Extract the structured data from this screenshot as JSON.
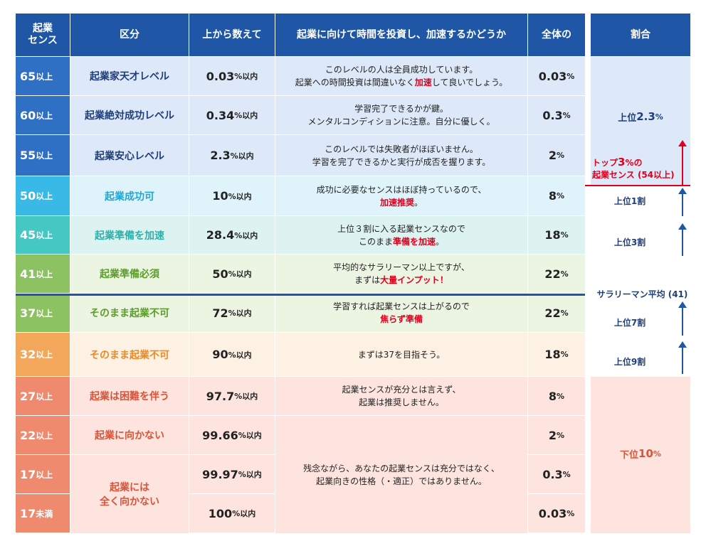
{
  "header": {
    "sense": "起業\nセンス",
    "category": "区分",
    "top_count": "上から数えて",
    "invest": "起業に向けて時間を投資し、加速するかどうか",
    "overall": "全体の",
    "ratio": "割合"
  },
  "rows": [
    {
      "score": "65",
      "suffix": "以上",
      "level": "起業家天才レベル",
      "top": "0.03",
      "top_unit": "%以内",
      "dist": "0.03",
      "unit": "%",
      "desc1": "このレベルの人は全員成功しています。",
      "desc2a": "起業への時間投資は間違いなく",
      "desc2b": "加速",
      "desc2c": "して良いでしょう。"
    },
    {
      "score": "60",
      "suffix": "以上",
      "level": "起業絶対成功レベル",
      "top": "0.34",
      "top_unit": "%以内",
      "dist": "0.3",
      "unit": "%",
      "desc1": "学習完了できるかが鍵。",
      "desc2": "メンタルコンディションに注意。自分に優しく。"
    },
    {
      "score": "55",
      "suffix": "以上",
      "level": "起業安心レベル",
      "top": "2.3",
      "top_unit": "%以内",
      "dist": "2",
      "unit": "%",
      "desc1": "このレベルでは失敗者がほぼいません。",
      "desc2": "学習を完了できるかと実行が成否を握ります。"
    },
    {
      "score": "50",
      "suffix": "以上",
      "level": "起業成功可",
      "top": "10",
      "top_unit": "%以内",
      "dist": "8",
      "unit": "%",
      "desc1": "成功に必要なセンスはほぼ持っているので、",
      "desc2_red": "加速推奨",
      "desc2_end": "。"
    },
    {
      "score": "45",
      "suffix": "以上",
      "level": "起業準備を加速",
      "top": "28.4",
      "top_unit": "%以内",
      "dist": "18",
      "unit": "%",
      "desc1": "上位３割に入る起業センスなので",
      "desc2a": "このまま",
      "desc2_red": "準備を加速",
      "desc2_end": "。"
    },
    {
      "score": "41",
      "suffix": "以上",
      "level": "起業準備必須",
      "top": "50",
      "top_unit": "%以内",
      "dist": "22",
      "unit": "%",
      "desc1": "平均的なサラリーマン以上ですが、",
      "desc2a": "まずは",
      "desc2_red": "大量インプット！"
    },
    {
      "score": "37",
      "suffix": "以上",
      "level": "そのまま起業不可",
      "top": "72",
      "top_unit": "%以内",
      "dist": "22",
      "unit": "%",
      "desc1": "学習すれば起業センスは上がるので",
      "desc2_red": "焦らず準備"
    },
    {
      "score": "32",
      "suffix": "以上",
      "level": "そのまま起業不可",
      "top": "90",
      "top_unit": "%以内",
      "dist": "18",
      "unit": "%",
      "desc1": "まずは37を目指そう。"
    },
    {
      "score": "27",
      "suffix": "以上",
      "level": "起業は困難を伴う",
      "top": "97.7",
      "top_unit": "%以内",
      "dist": "8",
      "unit": "%",
      "desc1": "起業センスが充分とは言えず、",
      "desc2": "起業は推奨しません。"
    },
    {
      "score": "22",
      "suffix": "以上",
      "level": "起業に向かない",
      "top": "99.66",
      "top_unit": "%以内",
      "dist": "2",
      "unit": "%"
    },
    {
      "score": "17",
      "suffix": "以上",
      "top": "99.97",
      "top_unit": "%以内",
      "dist": "0.3",
      "unit": "%"
    },
    {
      "score": "17",
      "suffix": "未満",
      "top": "100",
      "top_unit": "%以内",
      "dist": "0.03",
      "unit": "%"
    }
  ],
  "merged": {
    "level_line1": "起業には",
    "level_line2": "全く向かない",
    "desc_line1": "残念ながら、あなたの起業センスは充分ではなく、",
    "desc_line2": "起業向きの性格（・適正）ではありません。"
  },
  "side": {
    "top_label": "上位",
    "top_value": "2.3",
    "top_unit": "%",
    "top3_a": "トップ",
    "top3_b": "3",
    "top3_c": "%の",
    "top3_line2": "起業センス (54以上)",
    "top1": "上位1割",
    "top3w": "上位3割",
    "salary": "サラリーマン平均 (41)",
    "top7": "上位7割",
    "top9": "上位9割",
    "bottom_label": "下位",
    "bottom_value": "10",
    "bottom_unit": "%"
  },
  "colors": {
    "header_blue": "#1f57a6",
    "red": "#e0001b"
  }
}
